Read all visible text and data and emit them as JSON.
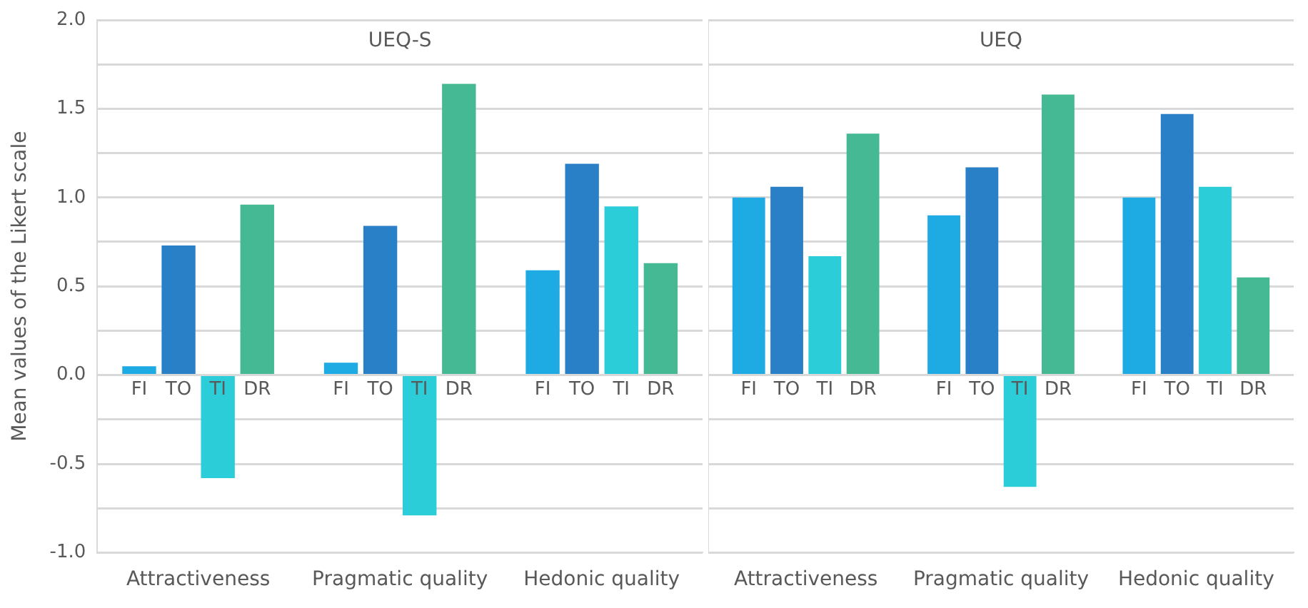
{
  "chart_data": [
    {
      "type": "bar",
      "title": "UEQ-S",
      "ylabel": "Mean values of the Likert scale",
      "categories": [
        "Attractiveness",
        "Pragmatic quality",
        "Hedonic quality"
      ],
      "series": [
        {
          "name": "FI",
          "color": "#1eaae2",
          "values": [
            0.05,
            0.07,
            0.59
          ]
        },
        {
          "name": "TO",
          "color": "#2a80c6",
          "values": [
            0.73,
            0.84,
            1.19
          ]
        },
        {
          "name": "TI",
          "color": "#2bcdd8",
          "values": [
            -0.58,
            -0.79,
            0.95
          ]
        },
        {
          "name": "DR",
          "color": "#44b994",
          "values": [
            0.96,
            1.64,
            0.63
          ]
        }
      ],
      "ylim": [
        -1,
        2
      ],
      "yticks": [
        {
          "value": -1,
          "label": "-1.0"
        },
        {
          "value": -0.75,
          "label": null
        },
        {
          "value": -0.5,
          "label": "-0.5"
        },
        {
          "value": -0.25,
          "label": null
        },
        {
          "value": 0,
          "label": "0.0"
        },
        {
          "value": 0.25,
          "label": null
        },
        {
          "value": 0.5,
          "label": "0.5"
        },
        {
          "value": 0.75,
          "label": null
        },
        {
          "value": 1,
          "label": "1.0"
        },
        {
          "value": 1.25,
          "label": null
        },
        {
          "value": 1.5,
          "label": "1.5"
        },
        {
          "value": 1.75,
          "label": null
        },
        {
          "value": 2,
          "label": "2.0"
        }
      ],
      "grid": "y",
      "legend": false
    },
    {
      "type": "bar",
      "title": "UEQ",
      "categories": [
        "Attractiveness",
        "Pragmatic quality",
        "Hedonic quality"
      ],
      "series": [
        {
          "name": "FI",
          "color": "#1eaae2",
          "values": [
            1.0,
            0.9,
            1.0
          ]
        },
        {
          "name": "TO",
          "color": "#2a80c6",
          "values": [
            1.06,
            1.17,
            1.47
          ]
        },
        {
          "name": "TI",
          "color": "#2bcdd8",
          "values": [
            0.67,
            -0.63,
            1.06
          ]
        },
        {
          "name": "DR",
          "color": "#44b994",
          "values": [
            1.36,
            1.58,
            0.55
          ]
        }
      ],
      "ylim": [
        -1,
        2
      ],
      "yticks": [
        {
          "value": -1,
          "label": null
        },
        {
          "value": -0.75,
          "label": null
        },
        {
          "value": -0.5,
          "label": null
        },
        {
          "value": -0.25,
          "label": null
        },
        {
          "value": 0,
          "label": null
        },
        {
          "value": 0.25,
          "label": null
        },
        {
          "value": 0.5,
          "label": null
        },
        {
          "value": 0.75,
          "label": null
        },
        {
          "value": 1,
          "label": null
        },
        {
          "value": 1.25,
          "label": null
        },
        {
          "value": 1.5,
          "label": null
        },
        {
          "value": 1.75,
          "label": null
        },
        {
          "value": 2,
          "label": null
        }
      ],
      "grid": "y",
      "legend": false,
      "tick_labels": "x"
    }
  ]
}
